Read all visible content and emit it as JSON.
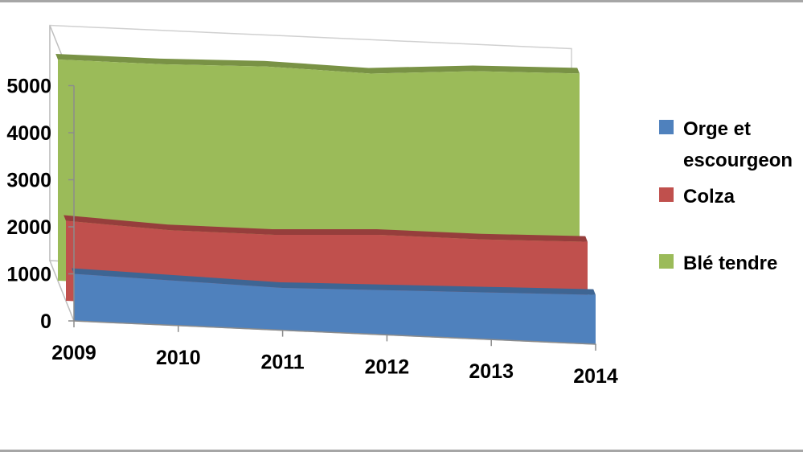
{
  "chart_data": {
    "type": "area",
    "subtype": "3d-stacked-area",
    "title": "",
    "xlabel": "",
    "ylabel": "",
    "categories": [
      "2009",
      "2010",
      "2011",
      "2012",
      "2013",
      "2014"
    ],
    "y_ticks": [
      "0",
      "1000",
      "2000",
      "3000",
      "4000",
      "5000"
    ],
    "y_ticks_visible": [
      "0",
      "1000",
      "2000",
      "3000",
      "4000",
      "5000"
    ],
    "ylim": [
      0,
      5000
    ],
    "series": [
      {
        "name": "Orge et escourgeon",
        "values": [
          1000,
          950,
          900,
          950,
          1000,
          1050
        ],
        "color": "#4f81bd"
      },
      {
        "name": "Colza",
        "values": [
          700,
          650,
          700,
          750,
          700,
          700
        ],
        "color": "#c0504d"
      },
      {
        "name": "Blé tendre",
        "values": [
          3000,
          3100,
          3150,
          3000,
          3150,
          3150
        ],
        "color": "#9bbb59"
      }
    ],
    "legend_position": "right",
    "grid": false
  },
  "legend": {
    "items": [
      {
        "label_line1": "Orge et",
        "label_line2": "escourgeon",
        "color": "#4f81bd"
      },
      {
        "label_line1": "Colza",
        "label_line2": "",
        "color": "#c0504d"
      },
      {
        "label_line1": "Blé tendre",
        "label_line2": "",
        "color": "#9bbb59"
      }
    ]
  }
}
